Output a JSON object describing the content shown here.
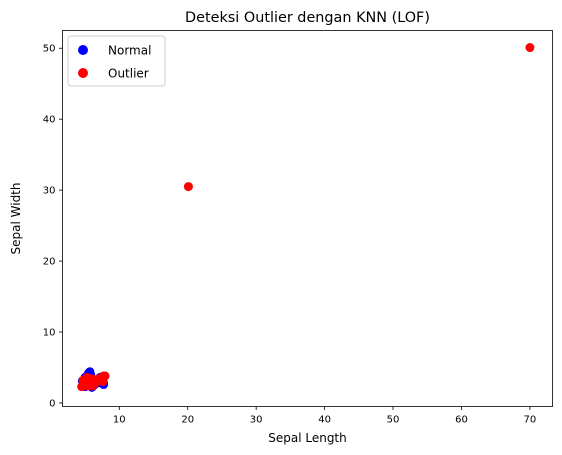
{
  "chart_data": {
    "type": "scatter",
    "title": "Deteksi Outlier dengan KNN (LOF)",
    "xlabel": "Sepal Length",
    "ylabel": "Sepal Width",
    "xlim": [
      1.7,
      73.3
    ],
    "ylim": [
      -0.5,
      52.5
    ],
    "xticks": [
      "10",
      "20",
      "30",
      "40",
      "50",
      "60",
      "70"
    ],
    "yticks": [
      "0",
      "10",
      "20",
      "30",
      "40",
      "50"
    ],
    "grid": false,
    "legend_position": "top-left",
    "series": [
      {
        "name": "Normal",
        "color": "#0000ff",
        "points": [
          [
            4.6,
            3.1
          ],
          [
            4.8,
            3.0
          ],
          [
            4.9,
            2.4
          ],
          [
            5.0,
            2.3
          ],
          [
            5.1,
            3.5
          ],
          [
            5.2,
            3.4
          ],
          [
            5.4,
            3.9
          ],
          [
            5.5,
            4.2
          ],
          [
            5.6,
            2.9
          ],
          [
            5.7,
            4.4
          ],
          [
            5.8,
            4.0
          ],
          [
            5.9,
            3.0
          ],
          [
            6.0,
            2.2
          ],
          [
            6.1,
            2.8
          ],
          [
            6.2,
            2.9
          ],
          [
            6.3,
            2.5
          ],
          [
            6.4,
            3.2
          ],
          [
            6.5,
            3.0
          ],
          [
            6.7,
            3.1
          ],
          [
            6.9,
            3.1
          ],
          [
            7.2,
            3.6
          ],
          [
            7.7,
            2.6
          ],
          [
            7.7,
            2.8
          ],
          [
            7.9,
            3.8
          ],
          [
            5.0,
            3.6
          ],
          [
            5.3,
            3.7
          ],
          [
            6.8,
            2.8
          ],
          [
            5.8,
            2.7
          ],
          [
            6.6,
            2.9
          ],
          [
            7.1,
            3.0
          ]
        ]
      },
      {
        "name": "Outlier",
        "color": "#ff0000",
        "points": [
          [
            4.5,
            2.3
          ],
          [
            4.7,
            3.2
          ],
          [
            5.0,
            3.3
          ],
          [
            5.2,
            2.7
          ],
          [
            5.3,
            3.6
          ],
          [
            5.4,
            3.0
          ],
          [
            5.5,
            2.4
          ],
          [
            5.6,
            3.0
          ],
          [
            5.8,
            2.6
          ],
          [
            6.0,
            3.4
          ],
          [
            6.1,
            2.4
          ],
          [
            6.2,
            3.3
          ],
          [
            6.5,
            2.8
          ],
          [
            6.7,
            3.3
          ],
          [
            7.0,
            3.2
          ],
          [
            7.3,
            3.5
          ],
          [
            7.6,
            3.0
          ],
          [
            7.7,
            3.8
          ],
          [
            7.9,
            3.8
          ],
          [
            20.1,
            30.5
          ],
          [
            70.0,
            50.1
          ]
        ]
      }
    ]
  }
}
